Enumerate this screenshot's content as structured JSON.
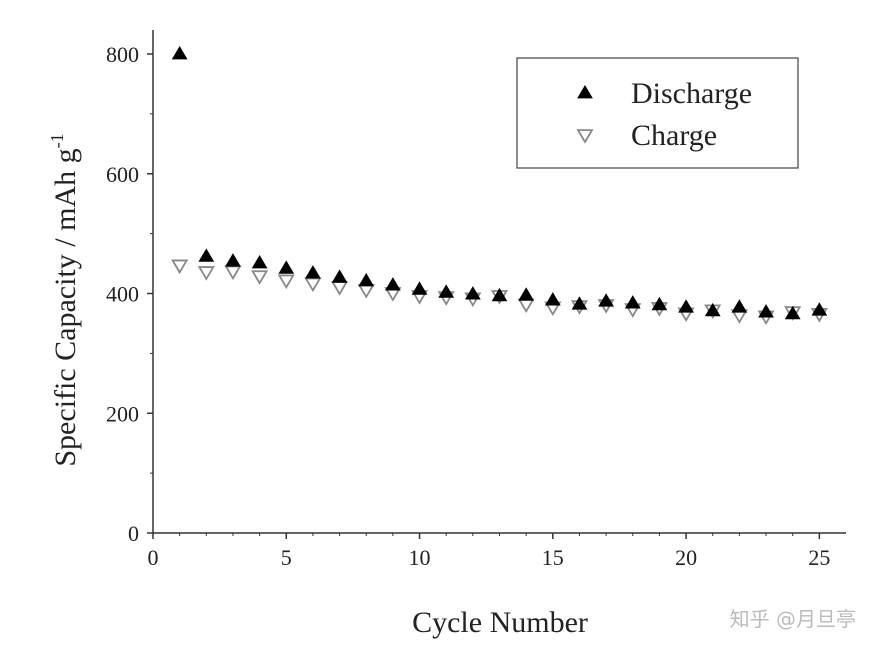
{
  "chart_data": {
    "type": "scatter",
    "title": "",
    "xlabel": "Cycle Number",
    "ylabel": "Specific Capacity / mAh g",
    "ylabel_superscript": "-1",
    "xlim": [
      0,
      26
    ],
    "ylim": [
      0,
      800
    ],
    "xticks": [
      0,
      5,
      10,
      15,
      20,
      25
    ],
    "yticks": [
      0,
      200,
      400,
      600,
      800
    ],
    "grid": false,
    "legend_position": "top-right",
    "x": [
      1,
      2,
      3,
      4,
      5,
      6,
      7,
      8,
      9,
      10,
      11,
      12,
      13,
      14,
      15,
      16,
      17,
      18,
      19,
      20,
      21,
      22,
      23,
      24,
      25
    ],
    "series": [
      {
        "name": "Discharge",
        "marker": "filled-triangle-up",
        "color": "#000000",
        "values": [
          800,
          462,
          454,
          451,
          442,
          434,
          427,
          421,
          414,
          407,
          402,
          399,
          396,
          397,
          389,
          382,
          387,
          384,
          381,
          377,
          371,
          377,
          369,
          366,
          372
        ]
      },
      {
        "name": "Charge",
        "marker": "open-triangle-down",
        "color": "#888888",
        "values": [
          447,
          436,
          437,
          429,
          422,
          417,
          411,
          406,
          401,
          396,
          394,
          392,
          396,
          382,
          377,
          379,
          381,
          374,
          376,
          367,
          372,
          364,
          362,
          369,
          366
        ]
      }
    ]
  },
  "watermark": "知乎 @月旦亭"
}
